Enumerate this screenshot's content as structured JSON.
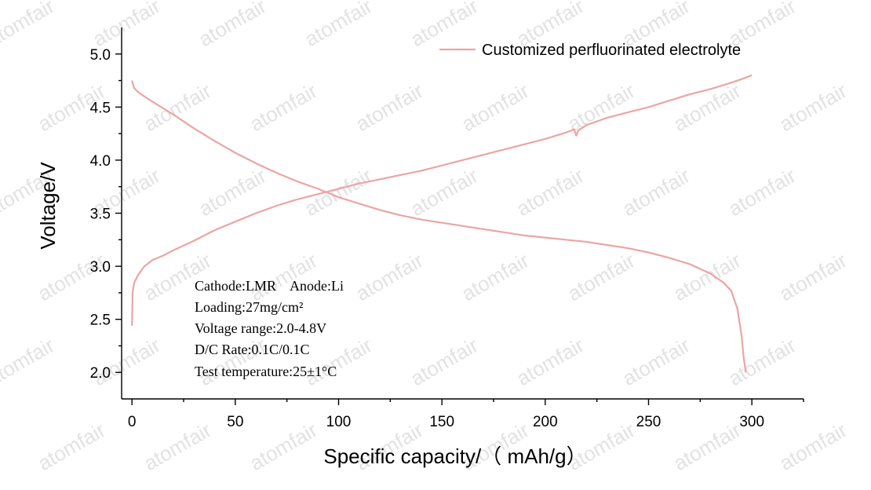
{
  "watermark": "atomfair",
  "chart_data": {
    "type": "line",
    "xlabel": "Specific capacity/（ mAh/g）",
    "ylabel": "Voltage/V",
    "xlim": [
      -5,
      325
    ],
    "ylim": [
      1.75,
      5.25
    ],
    "xticks": [
      0,
      50,
      100,
      150,
      200,
      250,
      300
    ],
    "yticks": [
      2.0,
      2.5,
      3.0,
      3.5,
      4.0,
      4.5,
      5.0
    ],
    "ytick_labels": [
      "2.0",
      "2.5",
      "3.0",
      "3.5",
      "4.0",
      "4.5",
      "5.0"
    ],
    "legend_position": "top-right",
    "color": "#eba5a5",
    "series": [
      {
        "name": "Customized perfluorinated electrolyte",
        "color": "#eba5a5",
        "charge": {
          "x": [
            0,
            0.3,
            1,
            3,
            6,
            10,
            15,
            20,
            30,
            40,
            50,
            60,
            70,
            80,
            90,
            100,
            110,
            120,
            130,
            140,
            150,
            160,
            170,
            180,
            190,
            200,
            210,
            214,
            215,
            216,
            220,
            230,
            240,
            250,
            260,
            270,
            280,
            290,
            296,
            300
          ],
          "y": [
            2.44,
            2.75,
            2.84,
            2.92,
            3.0,
            3.06,
            3.1,
            3.15,
            3.24,
            3.34,
            3.42,
            3.5,
            3.57,
            3.63,
            3.68,
            3.73,
            3.78,
            3.82,
            3.86,
            3.9,
            3.95,
            4.0,
            4.05,
            4.1,
            4.15,
            4.2,
            4.26,
            4.29,
            4.23,
            4.28,
            4.33,
            4.4,
            4.45,
            4.5,
            4.56,
            4.62,
            4.67,
            4.73,
            4.77,
            4.8
          ]
        },
        "discharge": {
          "x": [
            0,
            1,
            3,
            6,
            10,
            20,
            30,
            40,
            50,
            60,
            70,
            80,
            90,
            100,
            110,
            120,
            130,
            140,
            150,
            160,
            170,
            180,
            190,
            200,
            210,
            220,
            230,
            240,
            250,
            260,
            270,
            280,
            286,
            290,
            293,
            295,
            296,
            297
          ],
          "y": [
            4.75,
            4.68,
            4.64,
            4.6,
            4.55,
            4.43,
            4.3,
            4.18,
            4.07,
            3.97,
            3.88,
            3.8,
            3.73,
            3.65,
            3.59,
            3.53,
            3.48,
            3.44,
            3.41,
            3.38,
            3.35,
            3.32,
            3.29,
            3.27,
            3.25,
            3.23,
            3.2,
            3.17,
            3.13,
            3.08,
            3.02,
            2.93,
            2.85,
            2.77,
            2.6,
            2.35,
            2.15,
            2.0
          ]
        }
      }
    ],
    "annotations": [
      "Cathode:LMR    Anode:Li",
      "Loading:27mg/cm²",
      "Voltage range:2.0-4.8V",
      "D/C Rate:0.1C/0.1C",
      "Test temperature:25±1°C"
    ]
  }
}
